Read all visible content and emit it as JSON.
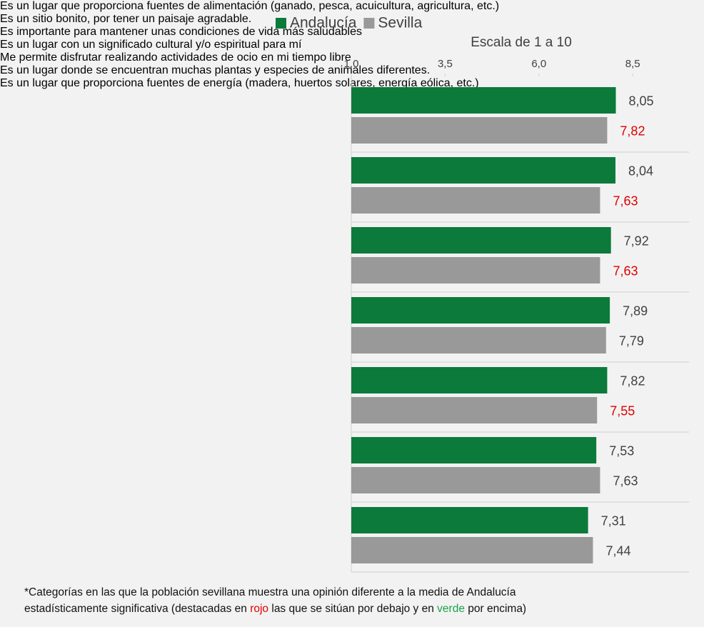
{
  "chart_data": {
    "type": "barh",
    "subtitle": "Escala de 1 a 10",
    "categories": [
      "Es un lugar que proporciona fuentes de\nalimentación (ganado, pesca, acuicultura,\nagricultura, etc.)",
      "Es un sitio bonito, por tener un paisaje\nagradable.",
      "Es importante para mantener unas\ncondiciones de vida más saludables",
      "Es un lugar con un significado cultural y/o\nespiritual para mí",
      "Me permite disfrutar realizando\nactividades de ocio en mi tiempo libre",
      "Es un lugar donde se encuentran muchas\nplantas y especies de animales diferentes.",
      "Es un lugar que proporciona fuentes de\nenergía (madera, huertos solares, energía\neólica, etc.)"
    ],
    "series": [
      {
        "name": "Andalucía",
        "color": "#0b7a3b",
        "values": [
          8.05,
          8.04,
          7.92,
          7.89,
          7.82,
          7.53,
          7.31
        ],
        "value_labels": [
          "8,05",
          "8,04",
          "7,92",
          "7,89",
          "7,82",
          "7,53",
          "7,31"
        ],
        "label_colors": [
          "#404040",
          "#404040",
          "#404040",
          "#404040",
          "#404040",
          "#404040",
          "#404040"
        ]
      },
      {
        "name": "Sevilla",
        "color": "#999999",
        "values": [
          7.82,
          7.63,
          7.63,
          7.79,
          7.55,
          7.63,
          7.44
        ],
        "value_labels": [
          "7,82",
          "7,63",
          "7,63",
          "7,79",
          "7,55",
          "7,63",
          "7,44"
        ],
        "label_colors": [
          "#e00000",
          "#e00000",
          "#e00000",
          "#404040",
          "#e00000",
          "#404040",
          "#404040"
        ]
      }
    ],
    "xlim": [
      1,
      10
    ],
    "xticks": [
      {
        "value": 1,
        "label": "1,0"
      },
      {
        "value": 3.5,
        "label": "3,5"
      },
      {
        "value": 6,
        "label": "6,0"
      },
      {
        "value": 8.5,
        "label": "8,5"
      }
    ],
    "legend": "top",
    "note_parts": [
      {
        "text": "*Categorías en las que la población sevillana muestra una opinión diferente a la media de Andalucía\nestadísticamente significativa (destacadas en "
      },
      {
        "text": "rojo",
        "color": "#e00000"
      },
      {
        "text": " las que se sitúan por debajo y en "
      },
      {
        "text": "verde",
        "color": "#1aa34a"
      },
      {
        "text": " por encima)"
      }
    ]
  }
}
